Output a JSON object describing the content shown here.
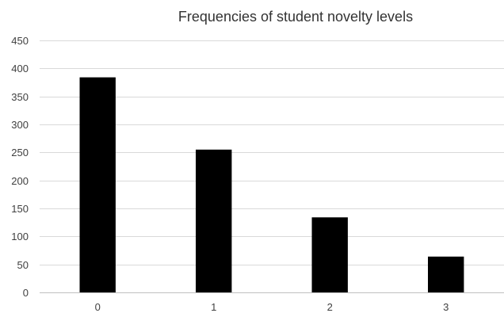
{
  "chart_data": {
    "type": "bar",
    "title": "Frequencies of student novelty levels",
    "xlabel": "",
    "ylabel": "",
    "categories": [
      "0",
      "1",
      "2",
      "3"
    ],
    "values": [
      384,
      255,
      134,
      64
    ],
    "ylim": [
      0,
      450
    ],
    "yticks": [
      0,
      50,
      100,
      150,
      200,
      250,
      300,
      350,
      400,
      450
    ],
    "grid": true,
    "legend": "none",
    "bar_color": "#000000"
  }
}
